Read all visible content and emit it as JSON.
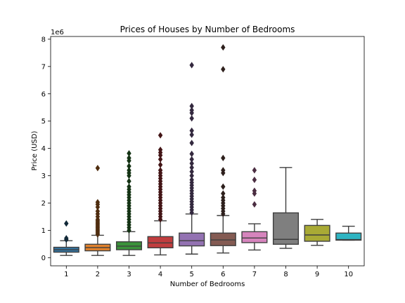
{
  "chart_data": {
    "type": "box",
    "title": "Prices of Houses by Number of Bedrooms",
    "xlabel": "Number of Bedrooms",
    "ylabel": "Price (USD)",
    "y_multiplier_label": "1e6",
    "ylim": [
      -0.3,
      8.1
    ],
    "yticks": [
      0,
      1,
      2,
      3,
      4,
      5,
      6,
      7,
      8
    ],
    "categories": [
      "1",
      "2",
      "3",
      "4",
      "5",
      "6",
      "7",
      "8",
      "9",
      "10"
    ],
    "colors": [
      "#3274a1",
      "#e1812c",
      "#3a923a",
      "#c03d3e",
      "#9372b2",
      "#845b53",
      "#d684bd",
      "#7f7f7f",
      "#a9aa35",
      "#2eb4c2"
    ],
    "boxes": [
      {
        "category": "1",
        "min": 0.08,
        "q1": 0.2,
        "median": 0.29,
        "q3": 0.38,
        "max": 0.62,
        "outliers": [
          0.66,
          0.71,
          1.25
        ]
      },
      {
        "category": "2",
        "min": 0.08,
        "q1": 0.25,
        "median": 0.37,
        "q3": 0.49,
        "max": 0.82,
        "outliers": [
          0.85,
          0.9,
          0.95,
          1.0,
          1.05,
          1.1,
          1.15,
          1.2,
          1.25,
          1.3,
          1.35,
          1.4,
          1.5,
          1.6,
          1.7,
          1.85,
          1.95,
          2.03,
          3.28
        ]
      },
      {
        "category": "3",
        "min": 0.08,
        "q1": 0.29,
        "median": 0.42,
        "q3": 0.58,
        "max": 0.95,
        "outliers": [
          1.0,
          1.1,
          1.2,
          1.3,
          1.4,
          1.5,
          1.6,
          1.7,
          1.8,
          1.9,
          2.0,
          2.1,
          2.2,
          2.3,
          2.4,
          2.5,
          2.6,
          2.8,
          3.0,
          3.1,
          3.2,
          3.35,
          3.55,
          3.65,
          3.82
        ]
      },
      {
        "category": "4",
        "min": 0.1,
        "q1": 0.36,
        "median": 0.54,
        "q3": 0.77,
        "max": 1.35,
        "outliers": [
          1.4,
          1.5,
          1.6,
          1.7,
          1.8,
          1.9,
          2.0,
          2.1,
          2.2,
          2.3,
          2.4,
          2.5,
          2.6,
          2.7,
          2.8,
          2.9,
          3.0,
          3.1,
          3.2,
          3.4,
          3.6,
          3.75,
          3.85,
          3.95,
          4.48
        ]
      },
      {
        "category": "5",
        "min": 0.13,
        "q1": 0.43,
        "median": 0.62,
        "q3": 0.9,
        "max": 1.6,
        "outliers": [
          1.65,
          1.75,
          1.85,
          1.95,
          2.05,
          2.15,
          2.25,
          2.35,
          2.45,
          2.55,
          2.65,
          2.75,
          2.85,
          3.0,
          3.15,
          3.3,
          3.45,
          3.6,
          3.8,
          4.2,
          4.5,
          4.65,
          5.1,
          5.3,
          5.4,
          5.55,
          7.05
        ]
      },
      {
        "category": "6",
        "min": 0.17,
        "q1": 0.44,
        "median": 0.65,
        "q3": 0.9,
        "max": 1.54,
        "outliers": [
          1.6,
          1.7,
          1.8,
          1.9,
          2.0,
          2.1,
          2.2,
          2.35,
          2.6,
          3.1,
          3.2,
          3.65,
          6.9,
          7.7
        ]
      },
      {
        "category": "7",
        "min": 0.28,
        "q1": 0.55,
        "median": 0.72,
        "q3": 0.95,
        "max": 1.24,
        "outliers": [
          1.95,
          2.35,
          2.45,
          2.85,
          3.2
        ]
      },
      {
        "category": "8",
        "min": 0.34,
        "q1": 0.49,
        "median": 0.67,
        "q3": 1.64,
        "max": 3.3,
        "outliers": []
      },
      {
        "category": "9",
        "min": 0.45,
        "q1": 0.6,
        "median": 0.83,
        "q3": 1.18,
        "max": 1.4,
        "outliers": []
      },
      {
        "category": "10",
        "min": 0.64,
        "q1": 0.64,
        "median": 0.66,
        "q3": 0.9,
        "max": 1.15,
        "outliers": []
      }
    ]
  }
}
